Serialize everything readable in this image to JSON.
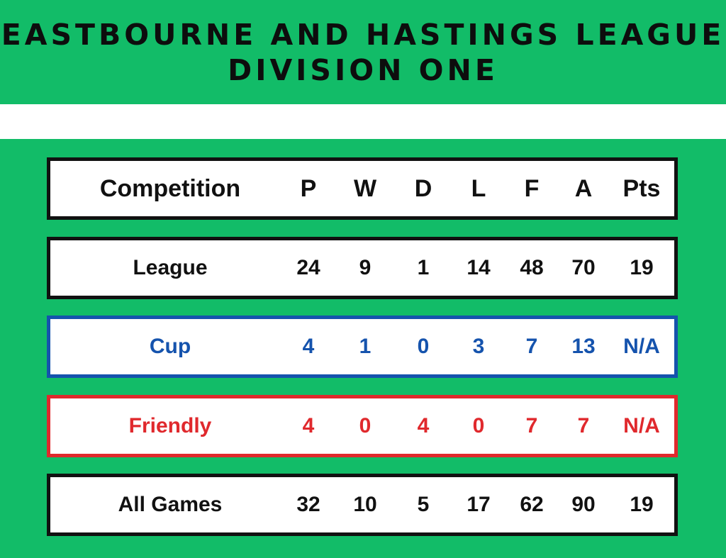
{
  "title": {
    "line1": "EASTBOURNE AND HASTINGS LEAGUE",
    "line2": "DIVISION ONE"
  },
  "colors": {
    "background": "#12bc68",
    "cup": "#1553ad",
    "friendly": "#e0292d",
    "default": "#111111"
  },
  "table": {
    "headers": [
      "Competition",
      "P",
      "W",
      "D",
      "L",
      "F",
      "A",
      "Pts"
    ],
    "rows": [
      {
        "style": "black",
        "cells": [
          "League",
          "24",
          "9",
          "1",
          "14",
          "48",
          "70",
          "19"
        ]
      },
      {
        "style": "cup",
        "cells": [
          "Cup",
          "4",
          "1",
          "0",
          "3",
          "7",
          "13",
          "N/A"
        ]
      },
      {
        "style": "friendly",
        "cells": [
          "Friendly",
          "4",
          "0",
          "4",
          "0",
          "7",
          "7",
          "N/A"
        ]
      },
      {
        "style": "black",
        "cells": [
          "All Games",
          "32",
          "10",
          "5",
          "17",
          "62",
          "90",
          "19"
        ]
      }
    ]
  }
}
